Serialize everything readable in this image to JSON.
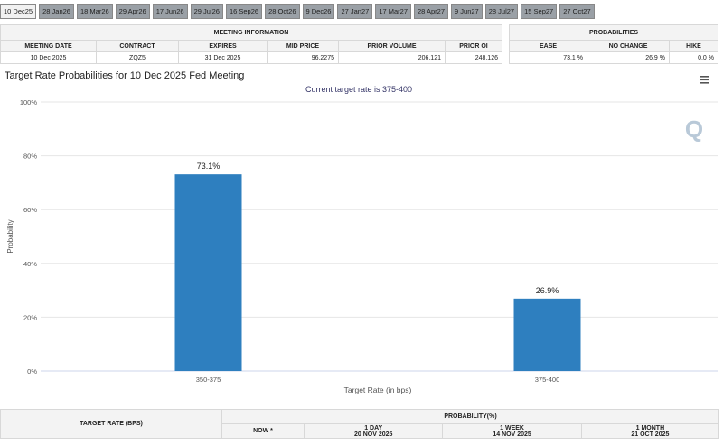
{
  "tabs": [
    "10 Dec25",
    "28 Jan26",
    "18 Mar26",
    "29 Apr26",
    "17 Jun26",
    "29 Jul26",
    "16 Sep26",
    "28 Oct26",
    "9 Dec26",
    "27 Jan27",
    "17 Mar27",
    "28 Apr27",
    "9 Jun27",
    "28 Jul27",
    "15 Sep27",
    "27 Oct27"
  ],
  "meeting_info": {
    "title": "MEETING INFORMATION",
    "headers": [
      "MEETING DATE",
      "CONTRACT",
      "EXPIRES",
      "MID PRICE",
      "PRIOR VOLUME",
      "PRIOR OI"
    ],
    "row": [
      "10 Dec 2025",
      "ZQZ5",
      "31 Dec 2025",
      "96.2275",
      "206,121",
      "248,126"
    ]
  },
  "probabilities": {
    "title": "PROBABILITIES",
    "headers": [
      "EASE",
      "NO CHANGE",
      "HIKE"
    ],
    "row": [
      "73.1 %",
      "26.9 %",
      "0.0 %"
    ]
  },
  "chart_data": {
    "type": "bar",
    "title": "Target Rate Probabilities for 10 Dec 2025 Fed Meeting",
    "subtitle": "Current target rate is 375-400",
    "categories": [
      "350-375",
      "375-400"
    ],
    "values": [
      73.1,
      26.9
    ],
    "value_labels": [
      "73.1%",
      "26.9%"
    ],
    "color": "#2e7fbf",
    "x_label": "Target Rate (in bps)",
    "y_label": "Probability",
    "ylim": [
      0,
      100
    ],
    "yticks": [
      {
        "value": 0,
        "label": "0%"
      },
      {
        "value": 20,
        "label": "20%"
      },
      {
        "value": 40,
        "label": "40%"
      },
      {
        "value": 60,
        "label": "60%"
      },
      {
        "value": 80,
        "label": "80%"
      },
      {
        "value": 100,
        "label": "100%"
      }
    ],
    "grid": true
  },
  "bottom_table": {
    "target_header": "TARGET RATE (BPS)",
    "prob_header": "PROBABILITY(%)",
    "columns": [
      {
        "label": "NOW *"
      },
      {
        "label": "1 DAY",
        "date": "20 NOV 2025"
      },
      {
        "label": "1 WEEK",
        "date": "14 NOV 2025"
      },
      {
        "label": "1 MONTH",
        "date": "21 OCT 2025"
      }
    ]
  }
}
